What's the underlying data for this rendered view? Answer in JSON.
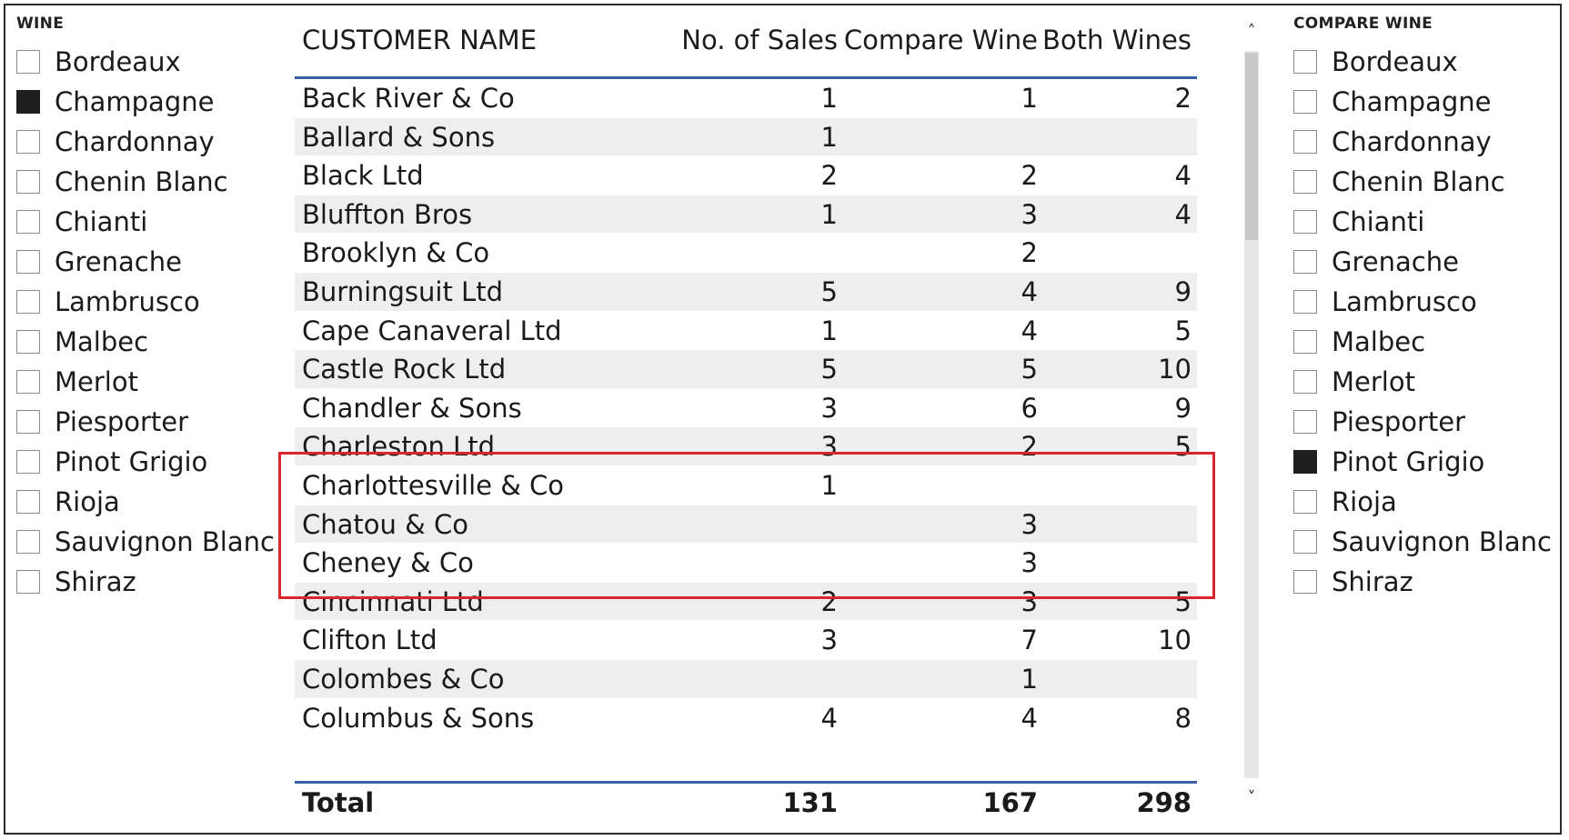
{
  "wine_slicer": {
    "title": "WINE",
    "items": [
      {
        "label": "Bordeaux",
        "checked": false
      },
      {
        "label": "Champagne",
        "checked": true
      },
      {
        "label": "Chardonnay",
        "checked": false
      },
      {
        "label": "Chenin Blanc",
        "checked": false
      },
      {
        "label": "Chianti",
        "checked": false
      },
      {
        "label": "Grenache",
        "checked": false
      },
      {
        "label": "Lambrusco",
        "checked": false
      },
      {
        "label": "Malbec",
        "checked": false
      },
      {
        "label": "Merlot",
        "checked": false
      },
      {
        "label": "Piesporter",
        "checked": false
      },
      {
        "label": "Pinot Grigio",
        "checked": false
      },
      {
        "label": "Rioja",
        "checked": false
      },
      {
        "label": "Sauvignon Blanc",
        "checked": false
      },
      {
        "label": "Shiraz",
        "checked": false
      }
    ]
  },
  "compare_slicer": {
    "title": "COMPARE WINE",
    "items": [
      {
        "label": "Bordeaux",
        "checked": false
      },
      {
        "label": "Champagne",
        "checked": false
      },
      {
        "label": "Chardonnay",
        "checked": false
      },
      {
        "label": "Chenin Blanc",
        "checked": false
      },
      {
        "label": "Chianti",
        "checked": false
      },
      {
        "label": "Grenache",
        "checked": false
      },
      {
        "label": "Lambrusco",
        "checked": false
      },
      {
        "label": "Malbec",
        "checked": false
      },
      {
        "label": "Merlot",
        "checked": false
      },
      {
        "label": "Piesporter",
        "checked": false
      },
      {
        "label": "Pinot Grigio",
        "checked": true
      },
      {
        "label": "Rioja",
        "checked": false
      },
      {
        "label": "Sauvignon Blanc",
        "checked": false
      },
      {
        "label": "Shiraz",
        "checked": false
      }
    ]
  },
  "table": {
    "headers": {
      "name": "CUSTOMER NAME",
      "sales": "No. of Sales",
      "compare": "Compare Wine",
      "both": "Both Wines"
    },
    "rows": [
      {
        "name": "Back River & Co",
        "sales": "1",
        "compare": "1",
        "both": "2"
      },
      {
        "name": "Ballard & Sons",
        "sales": "1",
        "compare": "",
        "both": ""
      },
      {
        "name": "Black Ltd",
        "sales": "2",
        "compare": "2",
        "both": "4"
      },
      {
        "name": "Bluffton Bros",
        "sales": "1",
        "compare": "3",
        "both": "4"
      },
      {
        "name": "Brooklyn & Co",
        "sales": "",
        "compare": "2",
        "both": ""
      },
      {
        "name": "Burningsuit Ltd",
        "sales": "5",
        "compare": "4",
        "both": "9"
      },
      {
        "name": "Cape Canaveral Ltd",
        "sales": "1",
        "compare": "4",
        "both": "5"
      },
      {
        "name": "Castle Rock Ltd",
        "sales": "5",
        "compare": "5",
        "both": "10"
      },
      {
        "name": "Chandler & Sons",
        "sales": "3",
        "compare": "6",
        "both": "9"
      },
      {
        "name": "Charleston Ltd",
        "sales": "3",
        "compare": "2",
        "both": "5"
      },
      {
        "name": "Charlottesville & Co",
        "sales": "1",
        "compare": "",
        "both": ""
      },
      {
        "name": "Chatou & Co",
        "sales": "",
        "compare": "3",
        "both": ""
      },
      {
        "name": "Cheney & Co",
        "sales": "",
        "compare": "3",
        "both": ""
      },
      {
        "name": "Cincinnati Ltd",
        "sales": "2",
        "compare": "3",
        "both": "5"
      },
      {
        "name": "Clifton Ltd",
        "sales": "3",
        "compare": "7",
        "both": "10"
      },
      {
        "name": "Colombes & Co",
        "sales": "",
        "compare": "1",
        "both": ""
      },
      {
        "name": "Columbus & Sons",
        "sales": "4",
        "compare": "4",
        "both": "8"
      }
    ],
    "total": {
      "label": "Total",
      "sales": "131",
      "compare": "167",
      "both": "298"
    },
    "highlighted_rows": [
      "Charleston Ltd",
      "Charlottesville & Co",
      "Chatou & Co"
    ]
  },
  "scrollbar": {
    "up_icon": "chevron-up-icon",
    "down_icon": "chevron-down-icon"
  },
  "colors": {
    "header_line": "#3a5fa6",
    "highlight": "#d8262c",
    "row_alt": "#eeeeee",
    "checked": "#1f1f1f"
  }
}
